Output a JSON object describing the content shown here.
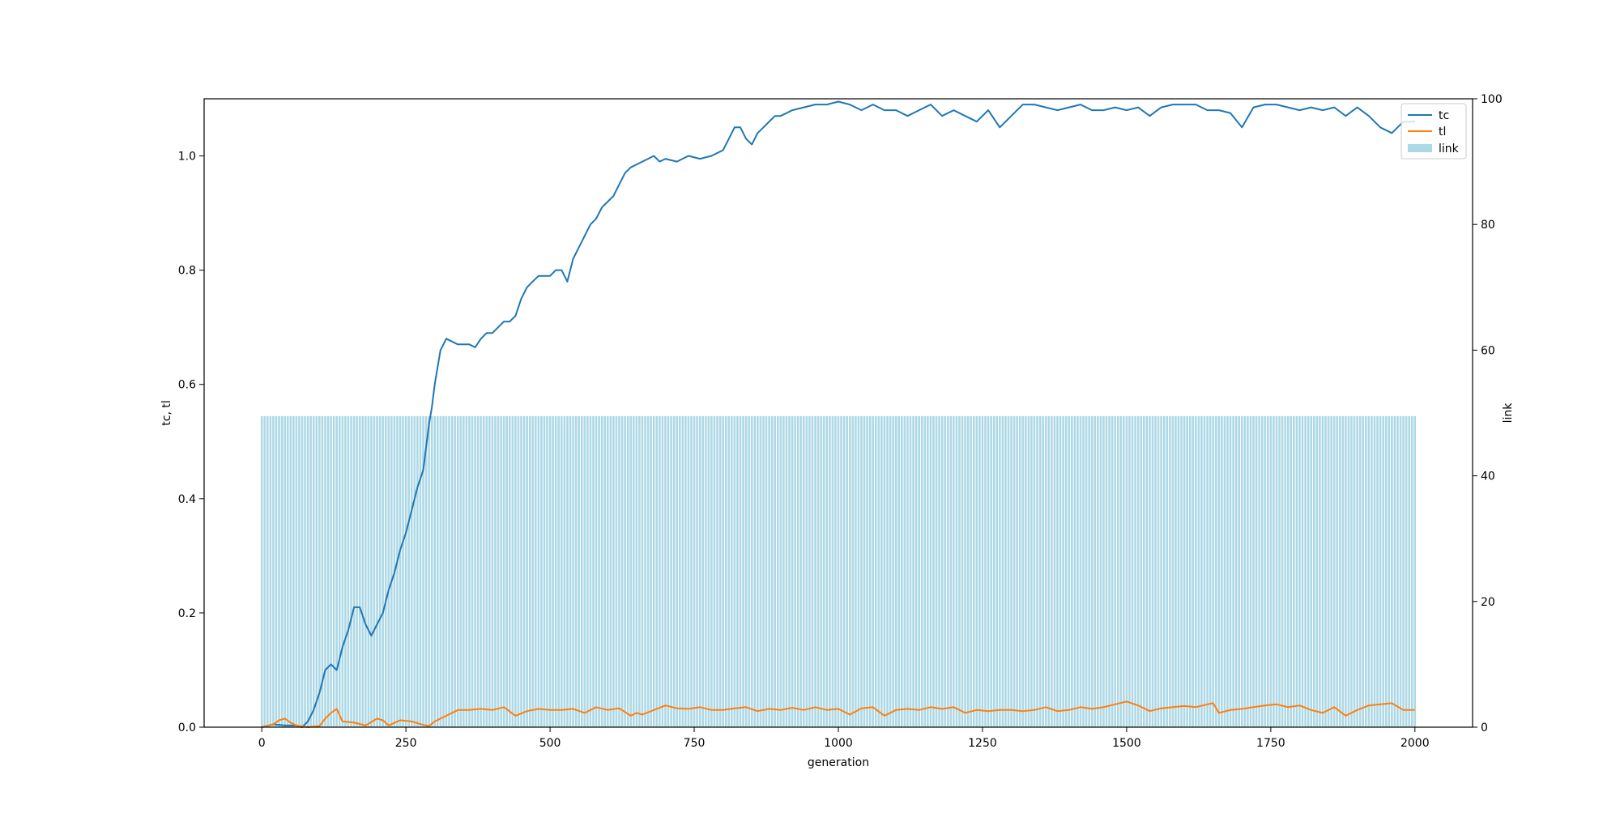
{
  "chart_data": {
    "type": "bar+line",
    "title": "",
    "xlabel": "generation",
    "ylabel_left": "tc, tl",
    "ylabel_right": "link",
    "xlim": [
      -100,
      2100
    ],
    "ylim_left": [
      0,
      1.1
    ],
    "ylim_right": [
      0,
      100
    ],
    "x_ticks": [
      0,
      250,
      500,
      750,
      1000,
      1250,
      1500,
      1750,
      2000
    ],
    "y_ticks_left": [
      0.0,
      0.2,
      0.4,
      0.6,
      0.8,
      1.0
    ],
    "y_ticks_right": [
      0,
      20,
      40,
      60,
      80,
      100
    ],
    "grid": false,
    "legend_position": "top-right",
    "legend": [
      "tc",
      "tl",
      "link"
    ],
    "colors": {
      "tc": "#1f77b4",
      "tl": "#ff7f0e",
      "link": "#add8e6"
    },
    "bars": {
      "name": "link",
      "axis": "right",
      "x_start": 0,
      "x_end": 2000,
      "x_step": 5,
      "value": 49.5
    },
    "series": [
      {
        "name": "tc",
        "axis": "left",
        "x": [
          0,
          20,
          40,
          60,
          70,
          80,
          90,
          100,
          110,
          120,
          130,
          140,
          150,
          160,
          170,
          180,
          190,
          200,
          210,
          220,
          230,
          240,
          250,
          260,
          270,
          280,
          290,
          295,
          300,
          310,
          320,
          330,
          340,
          350,
          360,
          370,
          380,
          390,
          400,
          410,
          420,
          430,
          440,
          450,
          460,
          470,
          480,
          490,
          500,
          510,
          520,
          530,
          540,
          550,
          560,
          570,
          580,
          590,
          600,
          610,
          620,
          630,
          640,
          650,
          660,
          670,
          680,
          690,
          700,
          720,
          740,
          760,
          780,
          800,
          810,
          820,
          830,
          840,
          850,
          860,
          870,
          880,
          890,
          900,
          920,
          940,
          960,
          980,
          1000,
          1020,
          1040,
          1060,
          1080,
          1100,
          1120,
          1140,
          1160,
          1180,
          1200,
          1220,
          1240,
          1260,
          1280,
          1300,
          1320,
          1340,
          1360,
          1380,
          1400,
          1420,
          1440,
          1460,
          1480,
          1500,
          1520,
          1540,
          1560,
          1580,
          1600,
          1620,
          1640,
          1660,
          1680,
          1700,
          1720,
          1740,
          1760,
          1780,
          1800,
          1820,
          1840,
          1860,
          1880,
          1900,
          1920,
          1940,
          1960,
          1980,
          2000
        ],
        "values": [
          0.0,
          0.005,
          0.003,
          0.003,
          0.0,
          0.01,
          0.03,
          0.06,
          0.1,
          0.11,
          0.1,
          0.14,
          0.17,
          0.21,
          0.21,
          0.18,
          0.16,
          0.18,
          0.2,
          0.24,
          0.27,
          0.31,
          0.34,
          0.38,
          0.42,
          0.45,
          0.53,
          0.56,
          0.6,
          0.66,
          0.68,
          0.675,
          0.67,
          0.67,
          0.67,
          0.665,
          0.68,
          0.69,
          0.69,
          0.7,
          0.71,
          0.71,
          0.72,
          0.75,
          0.77,
          0.78,
          0.79,
          0.79,
          0.79,
          0.8,
          0.8,
          0.78,
          0.82,
          0.84,
          0.86,
          0.88,
          0.89,
          0.91,
          0.92,
          0.93,
          0.95,
          0.97,
          0.98,
          0.985,
          0.99,
          0.995,
          1.0,
          0.99,
          0.995,
          0.99,
          1.0,
          0.995,
          1.0,
          1.01,
          1.03,
          1.05,
          1.05,
          1.03,
          1.02,
          1.04,
          1.05,
          1.06,
          1.07,
          1.07,
          1.08,
          1.085,
          1.09,
          1.09,
          1.095,
          1.09,
          1.08,
          1.09,
          1.08,
          1.08,
          1.07,
          1.08,
          1.09,
          1.07,
          1.08,
          1.07,
          1.06,
          1.08,
          1.05,
          1.07,
          1.09,
          1.09,
          1.085,
          1.08,
          1.085,
          1.09,
          1.08,
          1.08,
          1.085,
          1.08,
          1.085,
          1.07,
          1.085,
          1.09,
          1.09,
          1.09,
          1.08,
          1.08,
          1.075,
          1.05,
          1.085,
          1.09,
          1.09,
          1.085,
          1.08,
          1.085,
          1.08,
          1.085,
          1.07,
          1.085,
          1.07,
          1.05,
          1.04,
          1.06,
          1.06
        ]
      },
      {
        "name": "tl",
        "axis": "left",
        "x": [
          0,
          20,
          30,
          40,
          50,
          60,
          80,
          100,
          110,
          120,
          130,
          140,
          160,
          180,
          200,
          210,
          220,
          240,
          260,
          280,
          290,
          300,
          320,
          340,
          360,
          380,
          400,
          420,
          440,
          460,
          480,
          500,
          520,
          540,
          560,
          580,
          600,
          620,
          640,
          650,
          660,
          680,
          700,
          720,
          740,
          760,
          780,
          800,
          820,
          840,
          860,
          880,
          900,
          920,
          940,
          960,
          980,
          1000,
          1020,
          1040,
          1060,
          1080,
          1100,
          1120,
          1140,
          1160,
          1180,
          1200,
          1220,
          1240,
          1260,
          1280,
          1300,
          1320,
          1340,
          1360,
          1380,
          1400,
          1420,
          1440,
          1460,
          1480,
          1500,
          1520,
          1540,
          1560,
          1580,
          1600,
          1620,
          1640,
          1650,
          1660,
          1680,
          1700,
          1720,
          1740,
          1760,
          1780,
          1800,
          1820,
          1840,
          1860,
          1880,
          1900,
          1920,
          1940,
          1960,
          1980,
          2000
        ],
        "values": [
          0.0,
          0.005,
          0.012,
          0.015,
          0.008,
          0.003,
          0.0,
          0.002,
          0.015,
          0.025,
          0.032,
          0.01,
          0.008,
          0.003,
          0.015,
          0.012,
          0.003,
          0.012,
          0.01,
          0.004,
          0.002,
          0.01,
          0.02,
          0.03,
          0.03,
          0.032,
          0.03,
          0.035,
          0.02,
          0.028,
          0.032,
          0.03,
          0.03,
          0.032,
          0.025,
          0.035,
          0.03,
          0.033,
          0.02,
          0.025,
          0.022,
          0.03,
          0.038,
          0.033,
          0.032,
          0.035,
          0.03,
          0.03,
          0.033,
          0.035,
          0.028,
          0.032,
          0.03,
          0.034,
          0.03,
          0.035,
          0.03,
          0.032,
          0.022,
          0.033,
          0.035,
          0.02,
          0.03,
          0.032,
          0.03,
          0.035,
          0.032,
          0.035,
          0.025,
          0.03,
          0.028,
          0.03,
          0.03,
          0.028,
          0.03,
          0.035,
          0.028,
          0.03,
          0.035,
          0.032,
          0.035,
          0.04,
          0.045,
          0.038,
          0.028,
          0.033,
          0.035,
          0.037,
          0.035,
          0.04,
          0.042,
          0.025,
          0.03,
          0.032,
          0.035,
          0.038,
          0.04,
          0.035,
          0.038,
          0.03,
          0.025,
          0.035,
          0.02,
          0.03,
          0.038,
          0.04,
          0.042,
          0.03,
          0.03
        ]
      }
    ]
  }
}
